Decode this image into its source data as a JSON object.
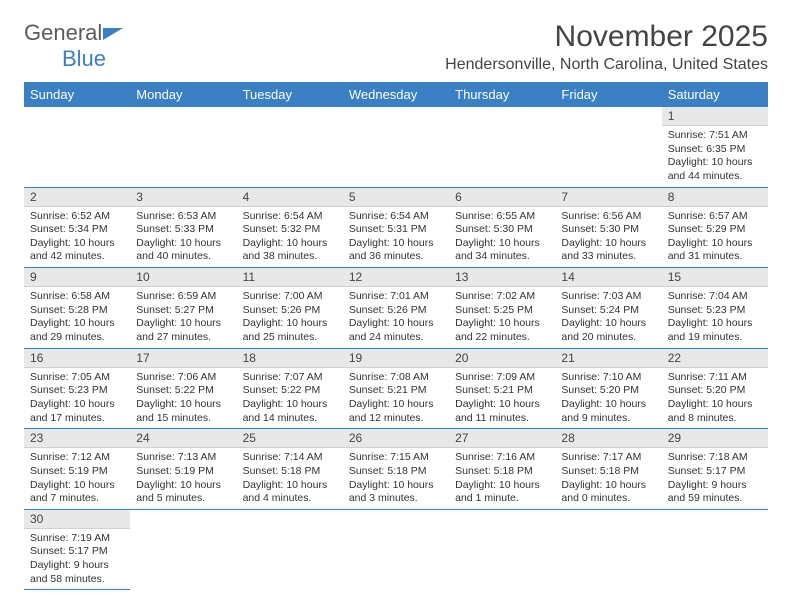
{
  "brand": {
    "part1": "General",
    "part2": "Blue"
  },
  "title": "November 2025",
  "location": "Hendersonville, North Carolina, United States",
  "colors": {
    "header_bg": "#3b7fc4",
    "header_text": "#ffffff",
    "daynum_bg": "#e8e8e8",
    "text": "#333333",
    "rule": "#3b7fc4"
  },
  "dayHeaders": [
    "Sunday",
    "Monday",
    "Tuesday",
    "Wednesday",
    "Thursday",
    "Friday",
    "Saturday"
  ],
  "startOffset": 6,
  "days": [
    {
      "n": 1,
      "sunrise": "7:51 AM",
      "sunset": "6:35 PM",
      "daylight": "10 hours and 44 minutes."
    },
    {
      "n": 2,
      "sunrise": "6:52 AM",
      "sunset": "5:34 PM",
      "daylight": "10 hours and 42 minutes."
    },
    {
      "n": 3,
      "sunrise": "6:53 AM",
      "sunset": "5:33 PM",
      "daylight": "10 hours and 40 minutes."
    },
    {
      "n": 4,
      "sunrise": "6:54 AM",
      "sunset": "5:32 PM",
      "daylight": "10 hours and 38 minutes."
    },
    {
      "n": 5,
      "sunrise": "6:54 AM",
      "sunset": "5:31 PM",
      "daylight": "10 hours and 36 minutes."
    },
    {
      "n": 6,
      "sunrise": "6:55 AM",
      "sunset": "5:30 PM",
      "daylight": "10 hours and 34 minutes."
    },
    {
      "n": 7,
      "sunrise": "6:56 AM",
      "sunset": "5:30 PM",
      "daylight": "10 hours and 33 minutes."
    },
    {
      "n": 8,
      "sunrise": "6:57 AM",
      "sunset": "5:29 PM",
      "daylight": "10 hours and 31 minutes."
    },
    {
      "n": 9,
      "sunrise": "6:58 AM",
      "sunset": "5:28 PM",
      "daylight": "10 hours and 29 minutes."
    },
    {
      "n": 10,
      "sunrise": "6:59 AM",
      "sunset": "5:27 PM",
      "daylight": "10 hours and 27 minutes."
    },
    {
      "n": 11,
      "sunrise": "7:00 AM",
      "sunset": "5:26 PM",
      "daylight": "10 hours and 25 minutes."
    },
    {
      "n": 12,
      "sunrise": "7:01 AM",
      "sunset": "5:26 PM",
      "daylight": "10 hours and 24 minutes."
    },
    {
      "n": 13,
      "sunrise": "7:02 AM",
      "sunset": "5:25 PM",
      "daylight": "10 hours and 22 minutes."
    },
    {
      "n": 14,
      "sunrise": "7:03 AM",
      "sunset": "5:24 PM",
      "daylight": "10 hours and 20 minutes."
    },
    {
      "n": 15,
      "sunrise": "7:04 AM",
      "sunset": "5:23 PM",
      "daylight": "10 hours and 19 minutes."
    },
    {
      "n": 16,
      "sunrise": "7:05 AM",
      "sunset": "5:23 PM",
      "daylight": "10 hours and 17 minutes."
    },
    {
      "n": 17,
      "sunrise": "7:06 AM",
      "sunset": "5:22 PM",
      "daylight": "10 hours and 15 minutes."
    },
    {
      "n": 18,
      "sunrise": "7:07 AM",
      "sunset": "5:22 PM",
      "daylight": "10 hours and 14 minutes."
    },
    {
      "n": 19,
      "sunrise": "7:08 AM",
      "sunset": "5:21 PM",
      "daylight": "10 hours and 12 minutes."
    },
    {
      "n": 20,
      "sunrise": "7:09 AM",
      "sunset": "5:21 PM",
      "daylight": "10 hours and 11 minutes."
    },
    {
      "n": 21,
      "sunrise": "7:10 AM",
      "sunset": "5:20 PM",
      "daylight": "10 hours and 9 minutes."
    },
    {
      "n": 22,
      "sunrise": "7:11 AM",
      "sunset": "5:20 PM",
      "daylight": "10 hours and 8 minutes."
    },
    {
      "n": 23,
      "sunrise": "7:12 AM",
      "sunset": "5:19 PM",
      "daylight": "10 hours and 7 minutes."
    },
    {
      "n": 24,
      "sunrise": "7:13 AM",
      "sunset": "5:19 PM",
      "daylight": "10 hours and 5 minutes."
    },
    {
      "n": 25,
      "sunrise": "7:14 AM",
      "sunset": "5:18 PM",
      "daylight": "10 hours and 4 minutes."
    },
    {
      "n": 26,
      "sunrise": "7:15 AM",
      "sunset": "5:18 PM",
      "daylight": "10 hours and 3 minutes."
    },
    {
      "n": 27,
      "sunrise": "7:16 AM",
      "sunset": "5:18 PM",
      "daylight": "10 hours and 1 minute."
    },
    {
      "n": 28,
      "sunrise": "7:17 AM",
      "sunset": "5:18 PM",
      "daylight": "10 hours and 0 minutes."
    },
    {
      "n": 29,
      "sunrise": "7:18 AM",
      "sunset": "5:17 PM",
      "daylight": "9 hours and 59 minutes."
    },
    {
      "n": 30,
      "sunrise": "7:19 AM",
      "sunset": "5:17 PM",
      "daylight": "9 hours and 58 minutes."
    }
  ],
  "labels": {
    "sunrise": "Sunrise: ",
    "sunset": "Sunset: ",
    "daylight": "Daylight: "
  }
}
